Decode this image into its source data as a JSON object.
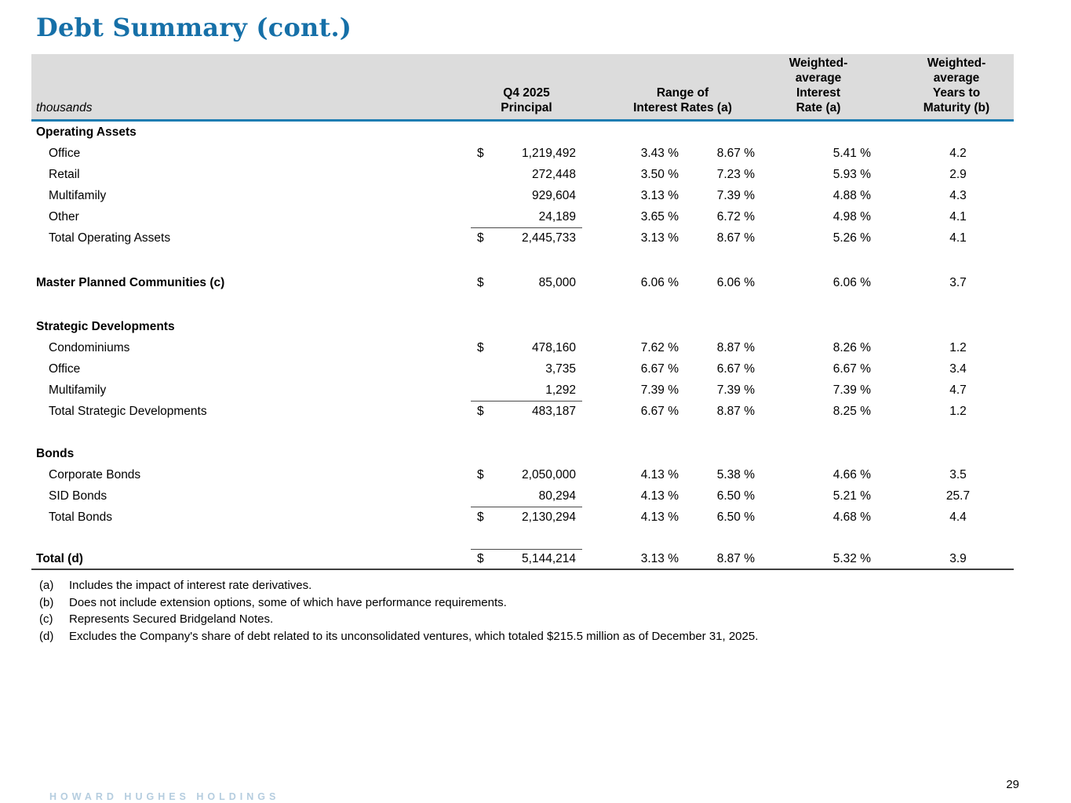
{
  "page": {
    "title": "Debt Summary (cont.)",
    "footer_logo": "HOWARD HUGHES HOLDINGS",
    "page_number": "29"
  },
  "colors": {
    "title_blue": "#1670a8",
    "header_rule_blue": "#1e7db2",
    "header_gray": "#dcdcdc",
    "logo_blue": "#b5cddf"
  },
  "table": {
    "unit_label": "thousands",
    "headers": {
      "principal": "Q4 2025\nPrincipal",
      "range": "Range of\nInterest Rates (a)",
      "wa_rate": "Weighted-\naverage\nInterest\nRate (a)",
      "wa_years": "Weighted-\naverage\nYears to\nMaturity (b)"
    },
    "rows": [
      {
        "type": "section",
        "label": "Operating Assets"
      },
      {
        "type": "item",
        "label": "Office",
        "dollar": "$",
        "principal": "1,219,492",
        "low": "3.43 %",
        "high": "8.67 %",
        "rate": "5.41 %",
        "years": "4.2"
      },
      {
        "type": "item",
        "label": "Retail",
        "principal": "272,448",
        "low": "3.50 %",
        "high": "7.23 %",
        "rate": "5.93 %",
        "years": "2.9"
      },
      {
        "type": "item",
        "label": "Multifamily",
        "principal": "929,604",
        "low": "3.13 %",
        "high": "7.39 %",
        "rate": "4.88 %",
        "years": "4.3"
      },
      {
        "type": "item",
        "label": "Other",
        "principal": "24,189",
        "low": "3.65 %",
        "high": "6.72 %",
        "rate": "4.98 %",
        "years": "4.1"
      },
      {
        "type": "total",
        "label": "Total Operating Assets",
        "dollar": "$",
        "principal": "2,445,733",
        "low": "3.13 %",
        "high": "8.67 %",
        "rate": "5.26 %",
        "years": "4.1"
      },
      {
        "type": "bold-item",
        "label": "Master Planned Communities (c)",
        "dollar": "$",
        "principal": "85,000",
        "low": "6.06 %",
        "high": "6.06 %",
        "rate": "6.06 %",
        "years": "3.7"
      },
      {
        "type": "section",
        "label": "Strategic Developments"
      },
      {
        "type": "item",
        "label": "Condominiums",
        "dollar": "$",
        "principal": "478,160",
        "low": "7.62 %",
        "high": "8.87 %",
        "rate": "8.26 %",
        "years": "1.2"
      },
      {
        "type": "item",
        "label": "Office",
        "principal": "3,735",
        "low": "6.67 %",
        "high": "6.67 %",
        "rate": "6.67 %",
        "years": "3.4"
      },
      {
        "type": "item",
        "label": "Multifamily",
        "principal": "1,292",
        "low": "7.39 %",
        "high": "7.39 %",
        "rate": "7.39 %",
        "years": "4.7"
      },
      {
        "type": "total",
        "label": "Total Strategic Developments",
        "dollar": "$",
        "principal": "483,187",
        "low": "6.67 %",
        "high": "8.87 %",
        "rate": "8.25 %",
        "years": "1.2"
      },
      {
        "type": "section",
        "label": "Bonds"
      },
      {
        "type": "item",
        "label": "Corporate Bonds",
        "dollar": "$",
        "principal": "2,050,000",
        "low": "4.13 %",
        "high": "5.38 %",
        "rate": "4.66 %",
        "years": "3.5"
      },
      {
        "type": "item",
        "label": "SID Bonds",
        "principal": "80,294",
        "low": "4.13 %",
        "high": "6.50 %",
        "rate": "5.21 %",
        "years": "25.7"
      },
      {
        "type": "total",
        "label": "Total Bonds",
        "dollar": "$",
        "principal": "2,130,294",
        "low": "4.13 %",
        "high": "6.50 %",
        "rate": "4.68 %",
        "years": "4.4"
      },
      {
        "type": "grand-total",
        "label": "Total (d)",
        "dollar": "$",
        "principal": "5,144,214",
        "low": "3.13 %",
        "high": "8.87 %",
        "rate": "5.32 %",
        "years": "3.9"
      }
    ]
  },
  "footnotes": [
    {
      "marker": "(a)",
      "text": "Includes the impact of interest rate derivatives."
    },
    {
      "marker": "(b)",
      "text": "Does not include extension options, some of which have performance requirements."
    },
    {
      "marker": "(c)",
      "text": "Represents Secured Bridgeland Notes."
    },
    {
      "marker": "(d)",
      "text": "Excludes the Company's share of debt related to its unconsolidated ventures, which totaled $215.5 million as of December 31, 2025."
    }
  ]
}
